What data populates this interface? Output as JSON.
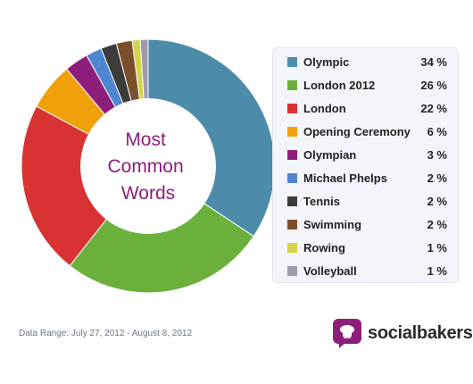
{
  "chart_data": {
    "type": "pie",
    "variant": "donut",
    "center_label": [
      "Most",
      "Common",
      "Words"
    ],
    "categories": [
      "Olympic",
      "London 2012",
      "London",
      "Opening Ceremony",
      "Olympian",
      "Michael Phelps",
      "Tennis",
      "Swimming",
      "Rowing",
      "Volleyball"
    ],
    "values": [
      34,
      26,
      22,
      6,
      3,
      2,
      2,
      2,
      1,
      1
    ],
    "value_labels": [
      "34 %",
      "26 %",
      "22 %",
      "6 %",
      "3 %",
      "2 %",
      "2 %",
      "2 %",
      "1 %",
      "1 %"
    ],
    "colors": [
      "#4d8bab",
      "#6cb03c",
      "#d83232",
      "#f0a10a",
      "#8e1e7b",
      "#4f86d2",
      "#3c3c3c",
      "#7a4f2b",
      "#d4d44a",
      "#a09aad"
    ],
    "legend_placement": "right"
  },
  "footer": {
    "data_range": "Data Range: July 27, 2012 - August 8, 2012"
  },
  "brand": {
    "name": "socialbakers",
    "logo": "socialbakers-logo-icon",
    "accent": "#8e1e7b"
  }
}
